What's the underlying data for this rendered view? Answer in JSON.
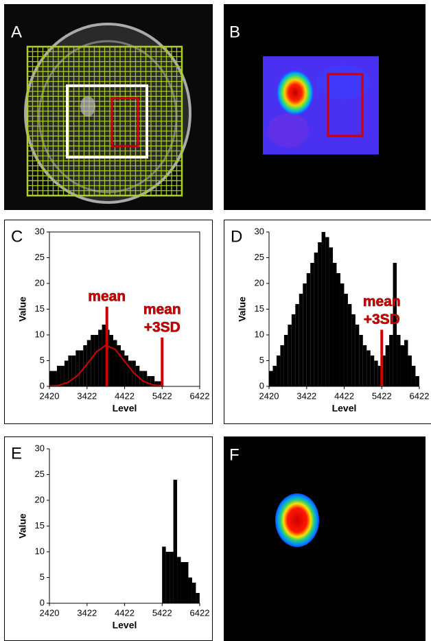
{
  "panel_labels": [
    "A",
    "B",
    "F"
  ],
  "chart_data": [
    {
      "type": "histogram",
      "panel": "C",
      "x_label": "Level",
      "y_label": "Value",
      "bins": [
        2420,
        2520,
        2620,
        2720,
        2820,
        2920,
        3020,
        3120,
        3220,
        3320,
        3420,
        3520,
        3620,
        3720,
        3820,
        3920,
        4020,
        4120,
        4220,
        4320,
        4420,
        4520,
        4620,
        4720,
        4820,
        4920,
        5020,
        5120,
        5220,
        5320,
        5420,
        5520,
        5620,
        5720,
        5820,
        5920,
        6020,
        6120,
        6220,
        6320,
        6420
      ],
      "values": [
        3,
        3,
        4,
        4,
        5,
        6,
        6,
        7,
        7,
        8,
        9,
        10,
        10,
        11,
        12,
        11,
        10,
        9,
        8,
        7,
        6,
        5,
        5,
        4,
        3,
        3,
        2,
        2,
        1,
        1,
        0,
        0,
        0,
        0,
        0,
        0,
        0,
        0,
        0,
        0
      ],
      "color": "#000000",
      "curve": {
        "color": "#d40000",
        "x": [
          2420,
          2670,
          2920,
          3170,
          3420,
          3670,
          3920,
          4170,
          4420,
          4670,
          4920,
          5170,
          5420
        ],
        "y": [
          0.05,
          0.2,
          0.8,
          2.1,
          4.3,
          6.7,
          8,
          7.2,
          4.9,
          2.6,
          1.0,
          0.3,
          0.1
        ]
      },
      "markers": [
        {
          "label_lines": [
            "mean"
          ],
          "x": 3950,
          "top": 15.5
        },
        {
          "label_lines": [
            "mean",
            "+3SD"
          ],
          "x": 5422,
          "top": 9.5
        }
      ],
      "xlim": [
        2420,
        6422
      ],
      "xticks": [
        2420,
        3422,
        4422,
        5422,
        6422
      ],
      "ylim": [
        0,
        30
      ],
      "yticks": [
        0,
        5,
        10,
        15,
        20,
        25,
        30
      ]
    },
    {
      "type": "histogram",
      "panel": "D",
      "x_label": "Level",
      "y_label": "Value",
      "bins": [
        2420,
        2520,
        2620,
        2720,
        2820,
        2920,
        3020,
        3120,
        3220,
        3320,
        3420,
        3520,
        3620,
        3720,
        3820,
        3920,
        4020,
        4120,
        4220,
        4320,
        4420,
        4520,
        4620,
        4720,
        4820,
        4920,
        5020,
        5120,
        5220,
        5320,
        5420,
        5520,
        5620,
        5720,
        5820,
        5920,
        6020,
        6120,
        6220,
        6320,
        6420
      ],
      "values": [
        3,
        4,
        6,
        8,
        10,
        12,
        14,
        16,
        18,
        20,
        22,
        24,
        26,
        28,
        30,
        29,
        27,
        24,
        22,
        20,
        18,
        16,
        14,
        12,
        10,
        8,
        7,
        6,
        5,
        4,
        6,
        8,
        10,
        24,
        10,
        8,
        9,
        6,
        4,
        2
      ],
      "color": "#000000",
      "markers": [
        {
          "label_lines": [
            "mean",
            "+3SD"
          ],
          "x": 5422,
          "top": 11
        }
      ],
      "xlim": [
        2420,
        6422
      ],
      "xticks": [
        2420,
        3422,
        4422,
        5422,
        6422
      ],
      "ylim": [
        0,
        30
      ],
      "yticks": [
        0,
        5,
        10,
        15,
        20,
        25,
        30
      ]
    },
    {
      "type": "histogram",
      "panel": "E",
      "x_label": "Level",
      "y_label": "Value",
      "bins": [
        2420,
        2520,
        2620,
        2720,
        2820,
        2920,
        3020,
        3120,
        3220,
        3320,
        3420,
        3520,
        3620,
        3720,
        3820,
        3920,
        4020,
        4120,
        4220,
        4320,
        4420,
        4520,
        4620,
        4720,
        4820,
        4920,
        5020,
        5120,
        5220,
        5320,
        5420,
        5520,
        5620,
        5720,
        5820,
        5920,
        6020,
        6120,
        6220,
        6320,
        6420
      ],
      "values": [
        0,
        0,
        0,
        0,
        0,
        0,
        0,
        0,
        0,
        0,
        0,
        0,
        0,
        0,
        0,
        0,
        0,
        0,
        0,
        0,
        0,
        0,
        0,
        0,
        0,
        0,
        0,
        0,
        0,
        0,
        11,
        10,
        10,
        24,
        9,
        8,
        8,
        5,
        4,
        2
      ],
      "color": "#000000",
      "xlim": [
        2420,
        6422
      ],
      "xticks": [
        2420,
        3422,
        4422,
        5422,
        6422
      ],
      "ylim": [
        0,
        30
      ],
      "yticks": [
        0,
        5,
        10,
        15,
        20,
        25,
        30
      ]
    }
  ]
}
